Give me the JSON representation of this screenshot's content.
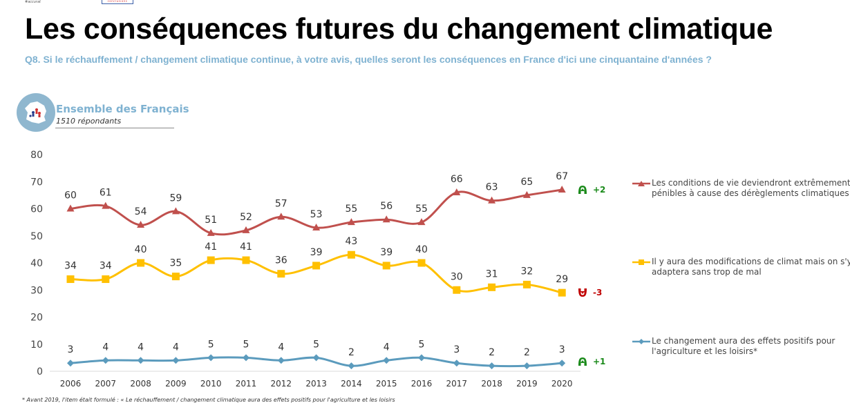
{
  "header": {
    "title": "Les conséquences futures du changement climatique",
    "question": "Q8. Si le réchauffement / changement climatique  continue, à votre avis, quelles seront les conséquences en France d'ici une cinquantaine d'années ?",
    "top_left_logo_text": "#accurat",
    "top_logo_box_text": "conclusions"
  },
  "sample": {
    "title": "Ensemble des Français",
    "subtitle": "1510 répondants"
  },
  "chart_data": {
    "type": "line",
    "title": "Les conséquences futures du changement climatique",
    "xlabel": "",
    "ylabel": "",
    "ylim": [
      0,
      80
    ],
    "yticks": [
      0,
      10,
      20,
      30,
      40,
      50,
      60,
      70,
      80
    ],
    "grid": false,
    "legend_position": "right",
    "categories": [
      "2006",
      "2007",
      "2008",
      "2009",
      "2010",
      "2011",
      "2012",
      "2013",
      "2014",
      "2015",
      "2016",
      "2017",
      "2018",
      "2019",
      "2020"
    ],
    "series": [
      {
        "name": "Les conditions de vie deviendront extrêmement pénibles à cause des dérèglements climatiques",
        "color": "#c0504d",
        "marker": "triangle",
        "values": [
          60,
          61,
          54,
          59,
          51,
          52,
          57,
          53,
          55,
          56,
          55,
          66,
          63,
          65,
          67
        ],
        "delta": "+2",
        "delta_direction": "up",
        "delta_color": "#1a8a1a"
      },
      {
        "name": "Il y aura des modifications de climat mais on s'y adaptera sans trop de mal",
        "color": "#ffc000",
        "marker": "square",
        "values": [
          34,
          34,
          40,
          35,
          41,
          41,
          36,
          39,
          43,
          39,
          40,
          30,
          31,
          32,
          29
        ],
        "delta": "-3",
        "delta_direction": "down",
        "delta_color": "#c00000"
      },
      {
        "name": "Le changement aura des effets positifs pour l'agriculture et les loisirs*",
        "color": "#5b9bbd",
        "marker": "diamond",
        "values": [
          3,
          4,
          4,
          4,
          5,
          5,
          4,
          5,
          2,
          4,
          5,
          3,
          2,
          2,
          3
        ],
        "delta": "+1",
        "delta_direction": "up",
        "delta_color": "#1a8a1a"
      }
    ]
  },
  "footnote": "* Avant 2019, l'item était formulé : « Le réchauffement / changement climatique aura des effets positifs pour l'agriculture et les loisirs"
}
